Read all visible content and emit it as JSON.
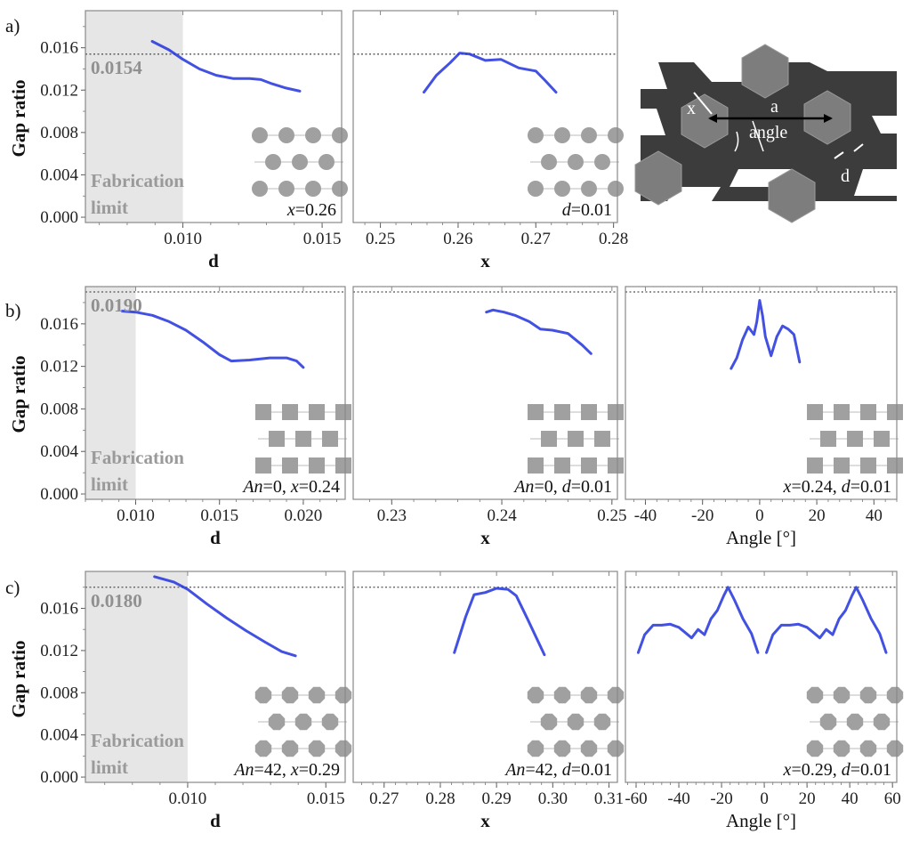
{
  "figure": {
    "rows": [
      {
        "label": "a)",
        "ylabel": "Gap ratio",
        "ref_label": "0.0154",
        "fab_label": [
          "Fabrication",
          "limit"
        ],
        "panels": [
          {
            "param_label": "x=0.26",
            "xlabel": "d",
            "xlabel_style": "bold"
          },
          {
            "param_label": "d=0.01",
            "xlabel": "x",
            "xlabel_style": "bold"
          }
        ]
      },
      {
        "label": "b)",
        "ylabel": "Gap ratio",
        "ref_label": "0.0190",
        "fab_label": [
          "Fabrication",
          "limit"
        ],
        "panels": [
          {
            "param_label": "An=0, x=0.24",
            "xlabel": "d",
            "xlabel_style": "bold"
          },
          {
            "param_label": "An=0, d=0.01",
            "xlabel": "x",
            "xlabel_style": "bold"
          },
          {
            "param_label": "x=0.24, d=0.01",
            "xlabel": "Angle [°]",
            "xlabel_style": "plain"
          }
        ]
      },
      {
        "label": "c)",
        "ylabel": "Gap ratio",
        "ref_label": "0.0180",
        "fab_label": [
          "Fabrication",
          "limit"
        ],
        "panels": [
          {
            "param_label": "An=42, x=0.29",
            "xlabel": "d",
            "xlabel_style": "bold"
          },
          {
            "param_label": "An=42, d=0.01",
            "xlabel": "x",
            "xlabel_style": "bold"
          },
          {
            "param_label": "x=0.29, d=0.01",
            "xlabel": "Angle [°]",
            "xlabel_style": "plain"
          }
        ]
      }
    ],
    "schematic": {
      "labels": {
        "x": "x",
        "a": "a",
        "angle": "angle",
        "d": "d"
      },
      "colors": {
        "background": "#3c3c3c",
        "hexagon": "#7d7d7d",
        "slot": "#ffffff"
      }
    },
    "colors": {
      "curve": "#2233dd",
      "fab_region": "#e6e6e6",
      "ref_line": "#555555",
      "inset": "#a0a0a0"
    }
  },
  "chart_data": [
    {
      "type": "line",
      "row": "a",
      "xlabel": "d",
      "ylabel": "Gap ratio",
      "xlim": [
        0.0065,
        0.0157
      ],
      "ylim": [
        -0.0005,
        0.0195
      ],
      "xticks": [
        0.01,
        0.015
      ],
      "xtick_labels": [
        "0.010",
        "0.015"
      ],
      "yticks": [
        0.0,
        0.004,
        0.008,
        0.012,
        0.016
      ],
      "ytick_labels": [
        "0.000",
        "0.004",
        "0.008",
        "0.012",
        "0.016"
      ],
      "reference_line": 0.0154,
      "fabrication_limit": 0.01,
      "series": [
        {
          "x": [
            0.0089,
            0.0095,
            0.01,
            0.0106,
            0.0112,
            0.0118,
            0.0124,
            0.0128,
            0.0132,
            0.0137,
            0.0142
          ],
          "y": [
            0.0166,
            0.0158,
            0.0149,
            0.014,
            0.0134,
            0.0131,
            0.0131,
            0.013,
            0.0126,
            0.0122,
            0.0119
          ]
        }
      ],
      "param_label": "x=0.26"
    },
    {
      "type": "line",
      "row": "a",
      "xlabel": "x",
      "ylabel": "Gap ratio",
      "xlim": [
        0.2465,
        0.2805
      ],
      "ylim": [
        -0.0005,
        0.0195
      ],
      "xticks": [
        0.25,
        0.26,
        0.27,
        0.28
      ],
      "xtick_labels": [
        "0.25",
        "0.26",
        "0.27",
        "0.28"
      ],
      "reference_line": 0.0154,
      "series": [
        {
          "x": [
            0.2556,
            0.2572,
            0.259,
            0.2602,
            0.2615,
            0.2635,
            0.2655,
            0.2678,
            0.27,
            0.2712,
            0.2726
          ],
          "y": [
            0.0118,
            0.0134,
            0.0146,
            0.0155,
            0.0154,
            0.0148,
            0.0149,
            0.0141,
            0.0138,
            0.0129,
            0.0118
          ]
        }
      ],
      "param_label": "d=0.01"
    },
    {
      "type": "line",
      "row": "b",
      "xlabel": "d",
      "ylabel": "Gap ratio",
      "xlim": [
        0.007,
        0.0225
      ],
      "ylim": [
        -0.0005,
        0.0195
      ],
      "xticks": [
        0.01,
        0.015,
        0.02
      ],
      "xtick_labels": [
        "0.010",
        "0.015",
        "0.020"
      ],
      "yticks": [
        0.0,
        0.004,
        0.008,
        0.012,
        0.016
      ],
      "ytick_labels": [
        "0.000",
        "0.004",
        "0.008",
        "0.012",
        "0.016"
      ],
      "reference_line": 0.019,
      "fabrication_limit": 0.01,
      "series": [
        {
          "x": [
            0.0092,
            0.01,
            0.011,
            0.012,
            0.013,
            0.014,
            0.015,
            0.0157,
            0.0168,
            0.018,
            0.019,
            0.0196,
            0.02
          ],
          "y": [
            0.0172,
            0.0171,
            0.0168,
            0.0162,
            0.0154,
            0.0143,
            0.0131,
            0.0125,
            0.0126,
            0.0128,
            0.0128,
            0.0125,
            0.0119
          ]
        }
      ],
      "param_label": "An=0, x=0.24"
    },
    {
      "type": "line",
      "row": "b",
      "xlabel": "x",
      "ylabel": "Gap ratio",
      "xlim": [
        0.2265,
        0.2505
      ],
      "ylim": [
        -0.0005,
        0.0195
      ],
      "xticks": [
        0.23,
        0.24,
        0.25
      ],
      "xtick_labels": [
        "0.23",
        "0.24",
        "0.25"
      ],
      "reference_line": 0.019,
      "series": [
        {
          "x": [
            0.2386,
            0.2392,
            0.2402,
            0.2412,
            0.2425,
            0.2435,
            0.2446,
            0.246,
            0.2473,
            0.2481
          ],
          "y": [
            0.0171,
            0.0173,
            0.0171,
            0.0168,
            0.0162,
            0.0155,
            0.0154,
            0.0151,
            0.014,
            0.0132
          ]
        }
      ],
      "param_label": "An=0, d=0.01"
    },
    {
      "type": "line",
      "row": "b",
      "xlabel": "Angle [°]",
      "ylabel": "Gap ratio",
      "xlim": [
        -47,
        48
      ],
      "ylim": [
        -0.0005,
        0.0195
      ],
      "xticks": [
        -40,
        -20,
        0,
        20,
        40
      ],
      "xtick_labels": [
        "-40",
        "-20",
        "0",
        "20",
        "40"
      ],
      "reference_line": 0.019,
      "series": [
        {
          "x": [
            -10,
            -8,
            -6,
            -4,
            -2,
            -1,
            0,
            1,
            2,
            4,
            6,
            8,
            10,
            12,
            14
          ],
          "y": [
            0.0118,
            0.0128,
            0.0145,
            0.0157,
            0.015,
            0.0162,
            0.0182,
            0.0168,
            0.0148,
            0.013,
            0.0148,
            0.0158,
            0.0155,
            0.015,
            0.0124
          ]
        }
      ],
      "param_label": "x=0.24, d=0.01"
    },
    {
      "type": "line",
      "row": "c",
      "xlabel": "d",
      "ylabel": "Gap ratio",
      "xlim": [
        0.0063,
        0.0157
      ],
      "ylim": [
        -0.0005,
        0.0195
      ],
      "xticks": [
        0.01,
        0.015
      ],
      "xtick_labels": [
        "0.010",
        "0.015"
      ],
      "yticks": [
        0.0,
        0.004,
        0.008,
        0.012,
        0.016
      ],
      "ytick_labels": [
        "0.000",
        "0.004",
        "0.008",
        "0.012",
        "0.016"
      ],
      "reference_line": 0.018,
      "fabrication_limit": 0.01,
      "series": [
        {
          "x": [
            0.0088,
            0.0095,
            0.01,
            0.0107,
            0.0114,
            0.0121,
            0.0128,
            0.0134,
            0.0139
          ],
          "y": [
            0.019,
            0.0185,
            0.0178,
            0.0164,
            0.0151,
            0.0139,
            0.0128,
            0.0119,
            0.0115
          ]
        }
      ],
      "param_label": "An=42, x=0.29"
    },
    {
      "type": "line",
      "row": "c",
      "xlabel": "x",
      "ylabel": "Gap ratio",
      "xlim": [
        0.2645,
        0.3115
      ],
      "ylim": [
        -0.0005,
        0.0195
      ],
      "xticks": [
        0.27,
        0.28,
        0.29,
        0.3,
        0.31
      ],
      "xtick_labels": [
        "0.27",
        "0.28",
        "0.29",
        "0.30",
        "0.31"
      ],
      "reference_line": 0.018,
      "series": [
        {
          "x": [
            0.2825,
            0.2845,
            0.286,
            0.288,
            0.29,
            0.292,
            0.2935,
            0.2955,
            0.2985
          ],
          "y": [
            0.0118,
            0.0152,
            0.0173,
            0.0175,
            0.0179,
            0.0178,
            0.0172,
            0.015,
            0.0116
          ]
        }
      ],
      "param_label": "An=42, d=0.01"
    },
    {
      "type": "line",
      "row": "c",
      "xlabel": "Angle [°]",
      "ylabel": "Gap ratio",
      "xlim": [
        -65,
        62
      ],
      "ylim": [
        -0.0005,
        0.0195
      ],
      "xticks": [
        -60,
        -40,
        -20,
        0,
        20,
        40,
        60
      ],
      "xtick_labels": [
        "-60",
        "-40",
        "-20",
        "0",
        "20",
        "40",
        "60"
      ],
      "reference_line": 0.018,
      "series": [
        {
          "x": [
            -59,
            -56,
            -52,
            -48,
            -44,
            -40,
            -37,
            -34,
            -31,
            -28,
            -25,
            -22,
            -19,
            -17,
            -14,
            -10,
            -6,
            -3
          ],
          "y": [
            0.0118,
            0.0135,
            0.0144,
            0.0144,
            0.0145,
            0.0142,
            0.0137,
            0.0132,
            0.014,
            0.0135,
            0.015,
            0.0158,
            0.0172,
            0.018,
            0.0168,
            0.015,
            0.0136,
            0.0118
          ]
        },
        {
          "x": [
            1,
            4,
            8,
            12,
            16,
            20,
            23,
            26,
            29,
            32,
            35,
            38,
            41,
            43,
            46,
            50,
            54,
            57
          ],
          "y": [
            0.0118,
            0.0135,
            0.0144,
            0.0144,
            0.0145,
            0.0142,
            0.0137,
            0.0132,
            0.014,
            0.0135,
            0.015,
            0.0158,
            0.0172,
            0.018,
            0.0168,
            0.015,
            0.0136,
            0.0118
          ]
        }
      ],
      "param_label": "x=0.29, d=0.01"
    }
  ]
}
